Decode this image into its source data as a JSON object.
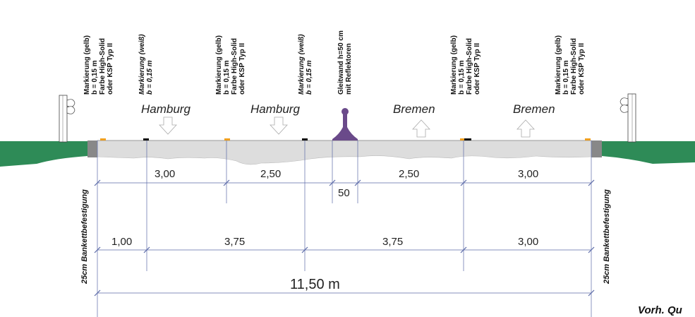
{
  "colors": {
    "verge_green": "#2e8b57",
    "pavement_gray": "#dddddd",
    "shoulder_dark": "#888888",
    "marking_yellow": "#f0a020",
    "marking_white": "#111111",
    "barrier_purple": "#6a4a8a",
    "dimension_line": "#5b6aa8"
  },
  "markings": {
    "yellow_left": "Markierung (gelb)\nb = 0,15 m\nFarbe High-Solid\noder KSP Typ II",
    "white_left": "Markierung (weiß)\nb = 0,15 m",
    "yellow_center_left": "Markierung (gelb)\nb = 0,15 m\nFarbe High-Solid\noder KSP Typ II",
    "white_center": "Markierung (weiß)\nb = 0,15 m",
    "barrier": "Gleitwand h=50 cm\nmit Reflektoren",
    "yellow_center_right": "Markierung (gelb)\nb = 0,15 m\nFarbe High-Solid\noder KSP Typ II",
    "yellow_right": "Markierung (gelb)\nb = 0,15 m\nFarbe High-Solid\noder KSP Typ II"
  },
  "directions": {
    "lane1": "Hamburg",
    "lane2": "Hamburg",
    "lane3": "Bremen",
    "lane4": "Bremen"
  },
  "dimensions_upper": [
    "3,00",
    "2,50",
    "2,50",
    "3,00"
  ],
  "barrier_width": "50",
  "dimensions_lower": [
    "1,00",
    "3,75",
    "3,75",
    "3,00"
  ],
  "total_width": "11,50 m",
  "bankett_label": "25cm Bankettbefestigung",
  "caption": "Vorh. Qu"
}
